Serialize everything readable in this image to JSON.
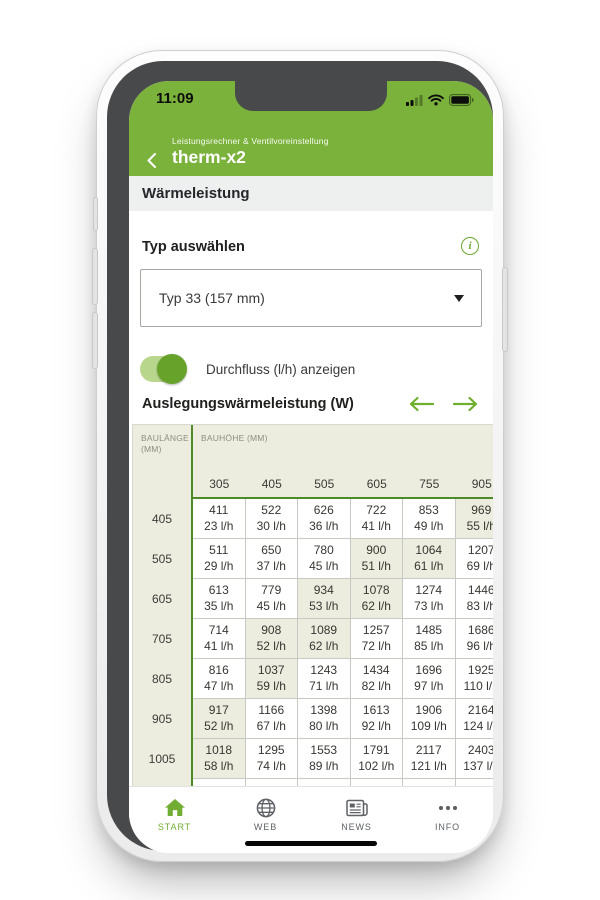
{
  "colors": {
    "brand_green": "#7bb23c",
    "accent_green": "#6ba62e",
    "table_line_green": "#4f8a28",
    "highlight_beige": "#ececdf",
    "section_gray": "#eef0f0",
    "text_dark": "#30302c",
    "muted_gray": "#8d8d81",
    "tab_inactive": "#5e6266"
  },
  "status_bar": {
    "time": "11:09",
    "icons": [
      "signal-icon",
      "wifi-icon",
      "battery-icon"
    ]
  },
  "header": {
    "breadcrumb": "Leistungsrechner & Ventilvoreinstellung",
    "title": "therm-x2",
    "back_icon": "chevron-left-icon"
  },
  "section": {
    "title": "Wärmeleistung"
  },
  "type_select": {
    "label": "Typ auswählen",
    "info_icon": "info-icon",
    "value": "Typ 33 (157 mm)",
    "dropdown_icon": "caret-down-icon"
  },
  "flow_toggle": {
    "label": "Durchfluss (l/h) anzeigen",
    "state": "on"
  },
  "table_section": {
    "title": "Auslegungswärmeleistung (W)",
    "nav_icons": [
      "arrow-left-icon",
      "arrow-right-icon"
    ]
  },
  "table": {
    "row_header": "BAULÄNGE (MM)",
    "col_header": "BAUHÖHE (MM)",
    "columns": [
      "305",
      "405",
      "505",
      "605",
      "755",
      "905"
    ],
    "rows": [
      {
        "length": "405",
        "cells": [
          {
            "w": "411",
            "flow": "23 l/h",
            "highlight": false
          },
          {
            "w": "522",
            "flow": "30 l/h",
            "highlight": false
          },
          {
            "w": "626",
            "flow": "36 l/h",
            "highlight": false
          },
          {
            "w": "722",
            "flow": "41 l/h",
            "highlight": false
          },
          {
            "w": "853",
            "flow": "49 l/h",
            "highlight": false
          },
          {
            "w": "969",
            "flow": "55 l/h",
            "highlight": true
          }
        ]
      },
      {
        "length": "505",
        "cells": [
          {
            "w": "511",
            "flow": "29 l/h",
            "highlight": false
          },
          {
            "w": "650",
            "flow": "37 l/h",
            "highlight": false
          },
          {
            "w": "780",
            "flow": "45 l/h",
            "highlight": false
          },
          {
            "w": "900",
            "flow": "51 l/h",
            "highlight": true
          },
          {
            "w": "1064",
            "flow": "61 l/h",
            "highlight": true
          },
          {
            "w": "1207",
            "flow": "69 l/h",
            "highlight": false
          }
        ]
      },
      {
        "length": "605",
        "cells": [
          {
            "w": "613",
            "flow": "35 l/h",
            "highlight": false
          },
          {
            "w": "779",
            "flow": "45 l/h",
            "highlight": false
          },
          {
            "w": "934",
            "flow": "53 l/h",
            "highlight": true
          },
          {
            "w": "1078",
            "flow": "62 l/h",
            "highlight": true
          },
          {
            "w": "1274",
            "flow": "73 l/h",
            "highlight": false
          },
          {
            "w": "1446",
            "flow": "83 l/h",
            "highlight": false
          }
        ]
      },
      {
        "length": "705",
        "cells": [
          {
            "w": "714",
            "flow": "41 l/h",
            "highlight": false
          },
          {
            "w": "908",
            "flow": "52 l/h",
            "highlight": true
          },
          {
            "w": "1089",
            "flow": "62 l/h",
            "highlight": true
          },
          {
            "w": "1257",
            "flow": "72 l/h",
            "highlight": false
          },
          {
            "w": "1485",
            "flow": "85 l/h",
            "highlight": false
          },
          {
            "w": "1686",
            "flow": "96 l/h",
            "highlight": false
          }
        ]
      },
      {
        "length": "805",
        "cells": [
          {
            "w": "816",
            "flow": "47 l/h",
            "highlight": false
          },
          {
            "w": "1037",
            "flow": "59 l/h",
            "highlight": true
          },
          {
            "w": "1243",
            "flow": "71 l/h",
            "highlight": false
          },
          {
            "w": "1434",
            "flow": "82 l/h",
            "highlight": false
          },
          {
            "w": "1696",
            "flow": "97 l/h",
            "highlight": false
          },
          {
            "w": "1925",
            "flow": "110 l/h",
            "highlight": false
          }
        ]
      },
      {
        "length": "905",
        "cells": [
          {
            "w": "917",
            "flow": "52 l/h",
            "highlight": true
          },
          {
            "w": "1166",
            "flow": "67 l/h",
            "highlight": false
          },
          {
            "w": "1398",
            "flow": "80 l/h",
            "highlight": false
          },
          {
            "w": "1613",
            "flow": "92 l/h",
            "highlight": false
          },
          {
            "w": "1906",
            "flow": "109 l/h",
            "highlight": false
          },
          {
            "w": "2164",
            "flow": "124 l/h",
            "highlight": false
          }
        ]
      },
      {
        "length": "1005",
        "cells": [
          {
            "w": "1018",
            "flow": "58 l/h",
            "highlight": true
          },
          {
            "w": "1295",
            "flow": "74 l/h",
            "highlight": false
          },
          {
            "w": "1553",
            "flow": "89 l/h",
            "highlight": false
          },
          {
            "w": "1791",
            "flow": "102 l/h",
            "highlight": false
          },
          {
            "w": "2117",
            "flow": "121 l/h",
            "highlight": false
          },
          {
            "w": "2403",
            "flow": "137 l/h",
            "highlight": false
          }
        ]
      }
    ]
  },
  "tab_bar": {
    "items": [
      {
        "label": "START",
        "icon": "home-icon",
        "active": true
      },
      {
        "label": "WEB",
        "icon": "globe-icon",
        "active": false
      },
      {
        "label": "NEWS",
        "icon": "news-icon",
        "active": false
      },
      {
        "label": "INFO",
        "icon": "more-dots-icon",
        "active": false
      }
    ]
  }
}
